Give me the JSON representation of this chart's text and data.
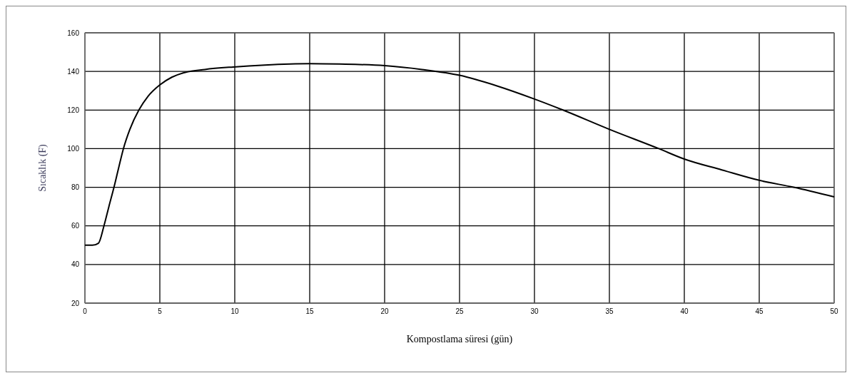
{
  "chart_data": {
    "type": "line",
    "xlabel": "Kompostlama süresi (gün)",
    "ylabel": "Sıcaklık (F)",
    "x": [
      0,
      0.5,
      0.9,
      1.27,
      1.6,
      1.94,
      2.25,
      2.57,
      3,
      3.6,
      4.2,
      5,
      5.8,
      6.7,
      8,
      9.9,
      12,
      15,
      17,
      20,
      22.5,
      25,
      27.5,
      30,
      31.9,
      35,
      38.3,
      40,
      42.5,
      45,
      47.3,
      50
    ],
    "series": [
      {
        "color": "#000000",
        "values": [
          50,
          50,
          51,
          60,
          70,
          80,
          90,
          100,
          110,
          120,
          127,
          133,
          137,
          139.5,
          141,
          142.3,
          143.3,
          144,
          143.8,
          143,
          141,
          138,
          132.5,
          125.7,
          120,
          110,
          100,
          94.6,
          89,
          83.6,
          80,
          75
        ]
      }
    ],
    "xlim": [
      0,
      50
    ],
    "xticks": [
      0,
      5,
      10,
      15,
      20,
      25,
      30,
      35,
      40,
      45,
      50
    ],
    "ylim": [
      20,
      160
    ],
    "yticks": [
      20,
      40,
      60,
      80,
      100,
      120,
      140,
      160
    ],
    "grid": true,
    "marker": "none",
    "line_style": "solid"
  }
}
